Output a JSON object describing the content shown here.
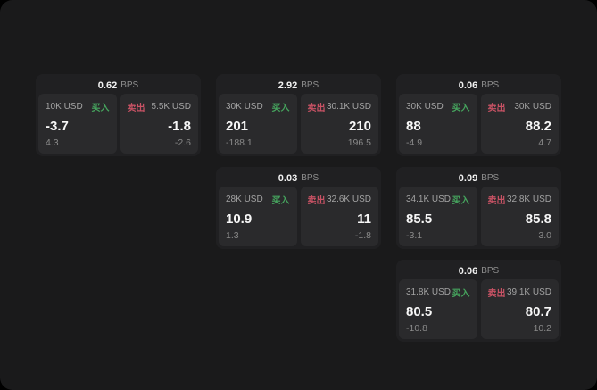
{
  "labels": {
    "bps_unit": "BPS",
    "buy": "买入",
    "sell": "卖出"
  },
  "colors": {
    "background": "#000000",
    "panel": "#1a1a1b",
    "card": "#202022",
    "pane": "#2a2a2c",
    "buy_green": "#46a55e",
    "sell_red": "#c75264"
  },
  "cards": [
    {
      "row": 1,
      "col": 1,
      "bps": "0.62",
      "buy": {
        "amount": "10K USD",
        "value": "-3.7",
        "delta": "4.3"
      },
      "sell": {
        "amount": "5.5K USD",
        "value": "-1.8",
        "delta": "-2.6"
      }
    },
    {
      "row": 1,
      "col": 2,
      "bps": "2.92",
      "buy": {
        "amount": "30K USD",
        "value": "201",
        "delta": "-188.1"
      },
      "sell": {
        "amount": "30.1K USD",
        "value": "210",
        "delta": "196.5"
      }
    },
    {
      "row": 1,
      "col": 3,
      "bps": "0.06",
      "buy": {
        "amount": "30K USD",
        "value": "88",
        "delta": "-4.9"
      },
      "sell": {
        "amount": "30K USD",
        "value": "88.2",
        "delta": "4.7"
      }
    },
    {
      "row": 2,
      "col": 2,
      "bps": "0.03",
      "buy": {
        "amount": "28K USD",
        "value": "10.9",
        "delta": "1.3"
      },
      "sell": {
        "amount": "32.6K USD",
        "value": "11",
        "delta": "-1.8"
      }
    },
    {
      "row": 2,
      "col": 3,
      "bps": "0.09",
      "buy": {
        "amount": "34.1K USD",
        "value": "85.5",
        "delta": "-3.1"
      },
      "sell": {
        "amount": "32.8K USD",
        "value": "85.8",
        "delta": "3.0"
      }
    },
    {
      "row": 3,
      "col": 3,
      "bps": "0.06",
      "buy": {
        "amount": "31.8K USD",
        "value": "80.5",
        "delta": "-10.8"
      },
      "sell": {
        "amount": "39.1K USD",
        "value": "80.7",
        "delta": "10.2"
      }
    }
  ]
}
